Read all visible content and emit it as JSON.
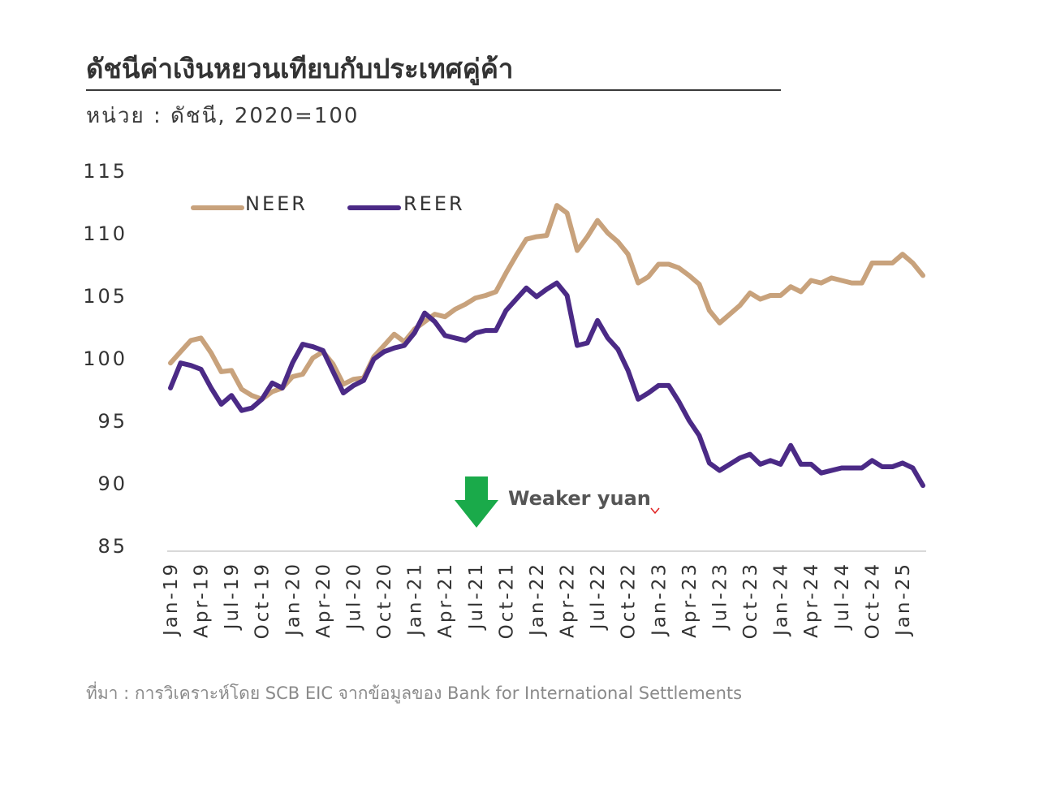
{
  "header": {
    "title": "ดัชนีค่าเงินหยวนเทียบกับประเทศคู่ค้า",
    "unit": "หน่วย : ดัชนี, 2020=100"
  },
  "footer": {
    "source": "ที่มา : การวิเคราะห์โดย SCB EIC จากข้อมูลของ Bank for International Settlements"
  },
  "chart_data": {
    "type": "line",
    "ylim": [
      85,
      115
    ],
    "yticks": [
      "85",
      "90",
      "95",
      "100",
      "105",
      "110",
      "115"
    ],
    "xtick_labels": [
      "Jan-19",
      "Apr-19",
      "Jul-19",
      "Oct-19",
      "Jan-20",
      "Apr-20",
      "Jul-20",
      "Oct-20",
      "Jan-21",
      "Apr-21",
      "Jul-21",
      "Oct-21",
      "Jan-22",
      "Apr-22",
      "Jul-22",
      "Oct-22",
      "Jan-23",
      "Apr-23",
      "Jul-23",
      "Oct-23",
      "Jan-24",
      "Apr-24",
      "Jul-24",
      "Oct-24",
      "Jan-25"
    ],
    "legend_position": "top-left",
    "grid": false,
    "annotation": {
      "text": "Weaker yuan",
      "arrow": "down",
      "arrow_color": "#1aaa4a"
    },
    "series": [
      {
        "name": "NEER",
        "color": "#c8a27c",
        "values": [
          99.6,
          100.5,
          101.4,
          101.6,
          100.4,
          98.9,
          99.0,
          97.5,
          97.0,
          96.7,
          97.3,
          97.6,
          98.5,
          98.7,
          100.0,
          100.5,
          99.5,
          97.9,
          98.3,
          98.4,
          100.1,
          101.0,
          101.9,
          101.3,
          102.3,
          102.9,
          103.5,
          103.3,
          103.9,
          104.3,
          104.8,
          105.0,
          105.3,
          106.8,
          108.2,
          109.5,
          109.7,
          109.8,
          112.2,
          111.6,
          108.6,
          109.7,
          111.0,
          110.0,
          109.3,
          108.3,
          106.0,
          106.5,
          107.5,
          107.5,
          107.2,
          106.6,
          105.9,
          103.8,
          102.8,
          103.5,
          104.2,
          105.2,
          104.7,
          105.0,
          105.0,
          105.7,
          105.3,
          106.2,
          106.0,
          106.4,
          106.2,
          106.0,
          106.0,
          107.6,
          107.6,
          107.6,
          108.3,
          107.6,
          106.6
        ]
      },
      {
        "name": "REER",
        "color": "#4b2a86",
        "values": [
          97.6,
          99.6,
          99.4,
          99.1,
          97.6,
          96.3,
          97.0,
          95.8,
          96.0,
          96.7,
          98.0,
          97.6,
          99.6,
          101.1,
          100.9,
          100.6,
          98.9,
          97.2,
          97.8,
          98.2,
          99.9,
          100.5,
          100.8,
          101.0,
          102.0,
          103.6,
          102.9,
          101.8,
          101.6,
          101.4,
          102.0,
          102.2,
          102.2,
          103.8,
          104.7,
          105.6,
          104.9,
          105.5,
          106.0,
          105.0,
          101.0,
          101.2,
          103.0,
          101.6,
          100.7,
          99.0,
          96.7,
          97.2,
          97.8,
          97.8,
          96.5,
          95.0,
          93.8,
          91.6,
          91.0,
          91.5,
          92.0,
          92.3,
          91.5,
          91.8,
          91.5,
          93.0,
          91.5,
          91.5,
          90.8,
          91.0,
          91.2,
          91.2,
          91.2,
          91.8,
          91.3,
          91.3,
          91.6,
          91.2,
          89.8
        ]
      }
    ]
  }
}
